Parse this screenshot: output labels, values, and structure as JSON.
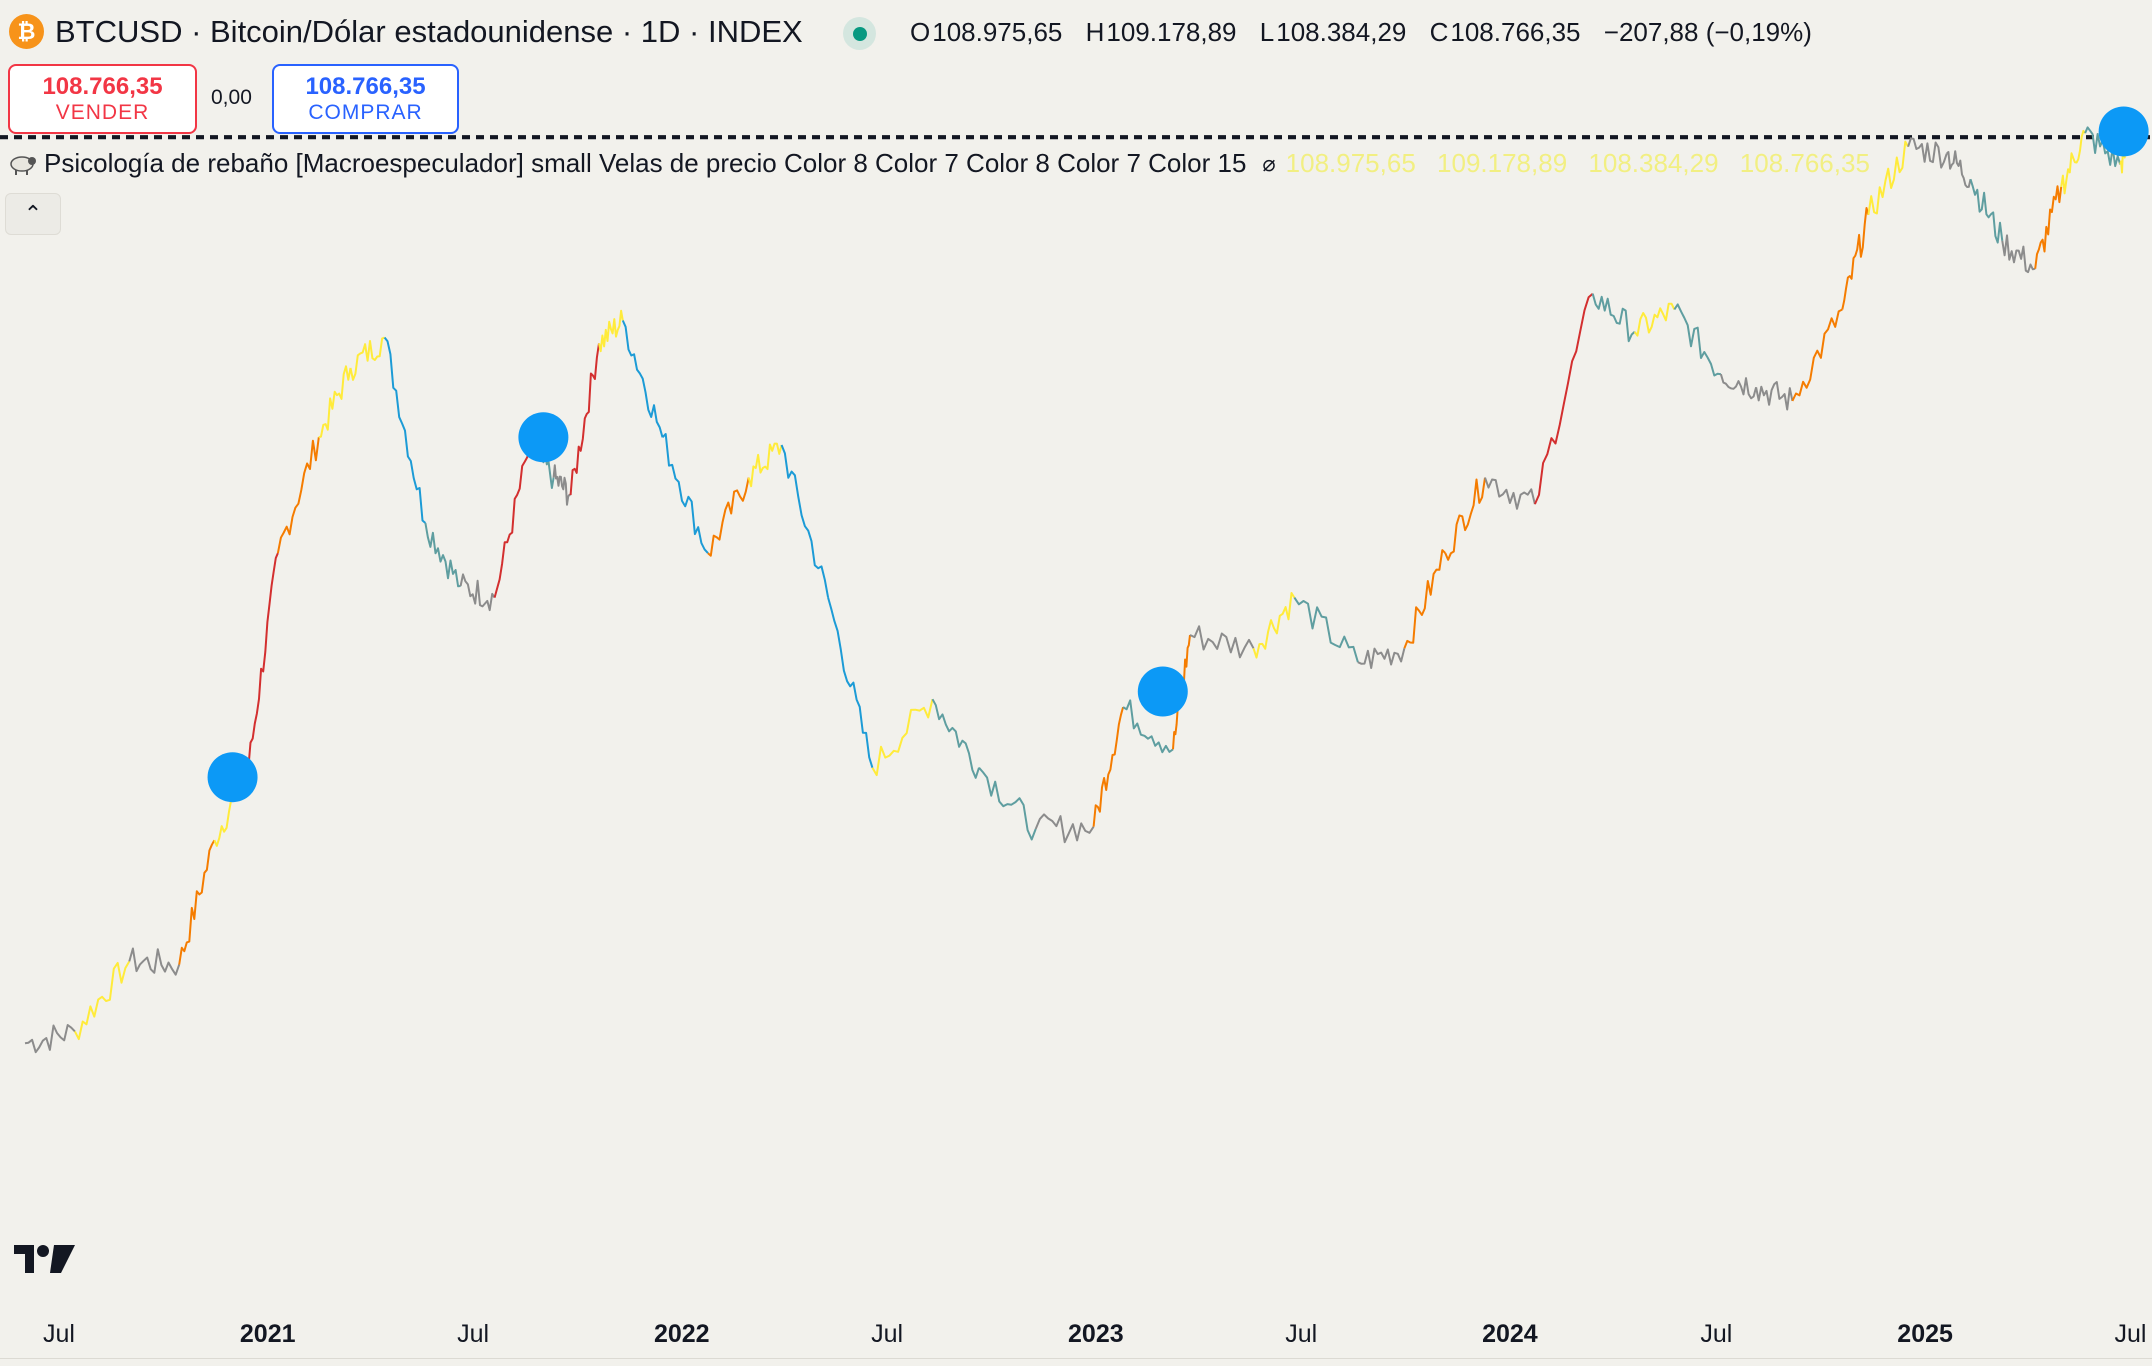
{
  "header": {
    "symbol_title": "BTCUSD · Bitcoin/Dólar estadounidense · 1D · INDEX",
    "logo_glyph": "₿",
    "ohlc": {
      "o_label": "O",
      "o_value": "108.975,65",
      "h_label": "H",
      "h_value": "109.178,89",
      "l_label": "L",
      "l_value": "108.384,29",
      "c_label": "C",
      "c_value": "108.766,35",
      "change": "−207,88 (−0,19%)"
    }
  },
  "trade": {
    "sell_price": "108.766,35",
    "sell_label": "VENDER",
    "spread": "0,00",
    "buy_price": "108.766,35",
    "buy_label": "COMPRAR"
  },
  "indicator": {
    "name": "Psicología de rebaño [Macroespeculador] small Velas de precio Color 8 Color 7 Color 8 Color 7 Color 15",
    "o": "108.975,65",
    "h": "109.178,89",
    "l": "108.384,29",
    "c": "108.766,35"
  },
  "x_axis": {
    "labels": [
      "Jul",
      "2021",
      "Jul",
      "2022",
      "Jul",
      "2023",
      "Jul",
      "2024",
      "Jul",
      "2025",
      "Jul"
    ],
    "bold": [
      false,
      true,
      false,
      true,
      false,
      true,
      false,
      true,
      false,
      true,
      false
    ]
  },
  "colors": {
    "background": "#f2f1ec",
    "signal_marker": "#0c99f6",
    "sell": "#f23645",
    "buy": "#2962ff",
    "indicator_text": "#f2ef82",
    "herd_extreme_greed": "#d32f2f",
    "herd_greed": "#f57c00",
    "herd_optimism": "#ffeb3b",
    "herd_neutral": "#8c8c8c",
    "herd_fear": "#5f9ea0",
    "herd_extreme_fear": "#1c9bd6"
  },
  "chart_data": {
    "type": "line",
    "x_unit": "date",
    "x": [
      "2020-06-01",
      "2020-07-15",
      "2020-09-01",
      "2020-10-15",
      "2020-11-15",
      "2020-12-15",
      "2021-01-10",
      "2021-02-15",
      "2021-03-15",
      "2021-04-14",
      "2021-05-20",
      "2021-06-20",
      "2021-07-20",
      "2021-08-20",
      "2021-09-10",
      "2021-09-25",
      "2021-10-20",
      "2021-11-10",
      "2021-12-15",
      "2022-01-24",
      "2022-03-01",
      "2022-03-30",
      "2022-05-10",
      "2022-06-18",
      "2022-08-10",
      "2022-09-20",
      "2022-11-09",
      "2022-12-30",
      "2023-01-25",
      "2023-03-10",
      "2023-03-25",
      "2023-05-20",
      "2023-06-25",
      "2023-08-20",
      "2023-09-30",
      "2023-11-05",
      "2023-12-10",
      "2024-01-23",
      "2024-03-14",
      "2024-04-20",
      "2024-05-25",
      "2024-07-05",
      "2024-08-05",
      "2024-09-06",
      "2024-10-20",
      "2024-11-12",
      "2024-12-17",
      "2025-01-20",
      "2025-02-10",
      "2025-03-10",
      "2025-04-08",
      "2025-05-01",
      "2025-05-22",
      "2025-06-22",
      "2025-07-03"
    ],
    "y": [
      9200,
      9500,
      11500,
      11400,
      16000,
      19500,
      35000,
      48000,
      58000,
      63000,
      38000,
      32000,
      31000,
      47000,
      43000,
      41000,
      62000,
      66000,
      48000,
      35000,
      43000,
      47000,
      31000,
      19500,
      23500,
      19500,
      16500,
      16600,
      23000,
      20500,
      28000,
      27000,
      31000,
      26000,
      27000,
      35000,
      43000,
      40000,
      71000,
      64000,
      68000,
      57000,
      55000,
      53000,
      68000,
      88000,
      106000,
      104000,
      97000,
      82000,
      76000,
      95000,
      110000,
      101000,
      108766
    ],
    "markers": [
      {
        "label": "signal",
        "x": "2020-12-01",
        "y": 19000
      },
      {
        "label": "signal",
        "x": "2021-09-01",
        "y": 48000
      },
      {
        "label": "signal",
        "x": "2023-03-01",
        "y": 24000
      },
      {
        "label": "signal",
        "x": "2025-06-25",
        "y": 110500
      }
    ],
    "reference_levels": [
      109178.89,
      108975.65,
      108766.35,
      108384.29
    ],
    "ylim": [
      6000,
      114000
    ],
    "xlim": [
      "2020-05-10",
      "2025-07-20"
    ],
    "grid": false
  }
}
